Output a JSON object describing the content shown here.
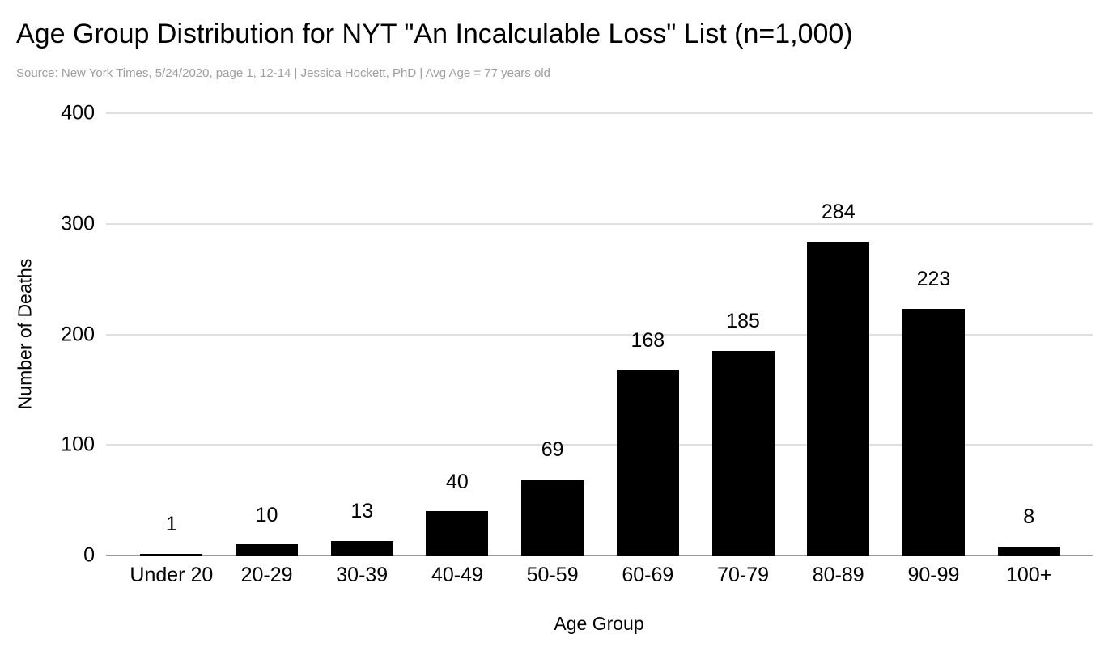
{
  "chart_data": {
    "type": "bar",
    "title": "Age Group Distribution for NYT \"An Incalculable Loss\" List (n=1,000)",
    "subtitle": "Source: New York Times, 5/24/2020, page 1, 12-14 | Jessica Hockett, PhD | Avg Age = 77 years old",
    "xlabel": "Age Group",
    "ylabel": "Number of Deaths",
    "categories": [
      "Under 20",
      "20-29",
      "30-39",
      "40-49",
      "50-59",
      "60-69",
      "70-79",
      "80-89",
      "90-99",
      "100+"
    ],
    "values": [
      1,
      10,
      13,
      40,
      69,
      168,
      185,
      284,
      223,
      8
    ],
    "ylim": [
      0,
      400
    ],
    "yticks": [
      0,
      100,
      200,
      300,
      400
    ],
    "grid": "horizontal",
    "legend": "none",
    "data_labels_shown": true,
    "colors": {
      "bar": "#000000",
      "title": "#000000",
      "subtitle": "#9e9e9e",
      "gridline": "#e0e0e0",
      "axis_line": "#999999",
      "label": "#000000",
      "background": "#ffffff"
    }
  }
}
